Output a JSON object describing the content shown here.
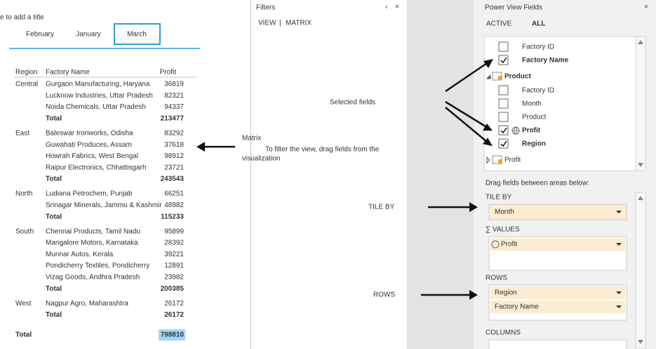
{
  "canvas": {
    "title": "e to add a title",
    "tiles": [
      "February",
      "January",
      "March"
    ],
    "selected_tile": 2
  },
  "matrix": {
    "headers": [
      "Region",
      "Factory Name",
      "Profit"
    ],
    "total_label": "Total",
    "groups": [
      {
        "region": "Central",
        "rows": [
          [
            "Gurgaon Manufacturing, Haryana",
            36819
          ],
          [
            "Lucknow Industries, Uttar Pradesh",
            82321
          ],
          [
            "Noida Chemicals, Uttar Pradesh",
            94337
          ]
        ],
        "total": 213477
      },
      {
        "region": "East",
        "rows": [
          [
            "Baleswar Ironworks, Odisha",
            83292
          ],
          [
            "Guwahati Produces, Assam",
            37618
          ],
          [
            "Howrah Fabrics, West Bengal",
            98912
          ],
          [
            "Raipur Electronics, Chhattisgarh",
            23721
          ]
        ],
        "total": 243543
      },
      {
        "region": "North",
        "rows": [
          [
            "Ludiana Petrochem, Punjab",
            66251
          ],
          [
            "Srinagar Minerals, Jammu & Kashmir",
            48982
          ]
        ],
        "total": 115233
      },
      {
        "region": "South",
        "rows": [
          [
            "Chennai Products, Tamil Nadu",
            95899
          ],
          [
            "Mangalore Motors, Karnataka",
            28392
          ],
          [
            "Munnar Autos, Kerala",
            39221
          ],
          [
            "Pondicherry Textiles, Pondicherry",
            12891
          ],
          [
            "Vizag Goods, Andhra Pradesh",
            23982
          ]
        ],
        "total": 200385
      },
      {
        "region": "West",
        "rows": [
          [
            "Nagpur Agro, Maharashtra",
            26172
          ]
        ],
        "total": 26172
      }
    ],
    "grand_total": 798810
  },
  "filters": {
    "title": "Filters",
    "tabs": [
      "VIEW",
      "MATRIX"
    ],
    "hint": "To filter the view, drag fields from the"
  },
  "fields": {
    "title": "Power View Fields",
    "tabs": [
      "ACTIVE",
      "ALL"
    ],
    "active_tab": 1,
    "items": [
      {
        "kind": "field",
        "label": "Factory ID",
        "checked": false
      },
      {
        "kind": "field",
        "label": "Factory Name",
        "checked": true
      },
      {
        "kind": "table",
        "label": "Product",
        "expanded": true
      },
      {
        "kind": "field",
        "label": "Factory ID",
        "checked": false
      },
      {
        "kind": "field",
        "label": "Month",
        "checked": false
      },
      {
        "kind": "field",
        "label": "Product",
        "checked": false
      },
      {
        "kind": "field",
        "label": "Profit",
        "checked": true,
        "icon": "globe"
      },
      {
        "kind": "field",
        "label": "Region",
        "checked": true
      },
      {
        "kind": "table",
        "label": "Profit",
        "expanded": false
      }
    ],
    "areas_hint": "Drag fields between areas below:",
    "areas": [
      {
        "label": "TILE BY",
        "wells": [
          "Month"
        ]
      },
      {
        "label": "∑ VALUES",
        "wells": [
          "Profit"
        ]
      },
      {
        "label": "ROWS",
        "wells": [
          "Region",
          "Factory Name"
        ]
      },
      {
        "label": "COLUMNS",
        "wells": []
      }
    ]
  },
  "annotations": {
    "selected_fields": "Selected fields",
    "matrix": [
      "Matrix",
      "visualization"
    ],
    "tile_by": "TILE BY",
    "rows": "ROWS"
  }
}
